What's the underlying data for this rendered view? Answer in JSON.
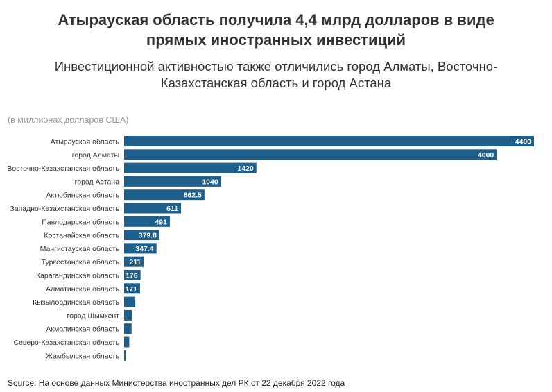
{
  "header": {
    "title_line1": "Атырауская область получила 4,4 млрд долларов в виде",
    "title_line2": "прямых иностранных инвестиций",
    "subtitle_line1": "Инвестиционной активностью также отличились город Алматы, Восточно-",
    "subtitle_line2": "Казахстанская область и город Астана",
    "unit_note": "(в миллионах долларов США)"
  },
  "footer": {
    "source_label": "Source:",
    "source_text": "На основе данных Министерства иностранных дел РК от 22 декабря 2022 года"
  },
  "colors": {
    "bar": "#1f5f8b",
    "label_text": "#ffffff"
  },
  "chart_data": {
    "type": "bar",
    "orientation": "horizontal",
    "title": "Атырауская область получила 4,4 млрд долларов в виде прямых иностранных инвестиций",
    "subtitle": "Инвестиционной активностью также отличились город Алматы, Восточно-Казахстанская область и город Астана",
    "xlabel": "",
    "ylabel": "",
    "unit": "(в миллионах долларов США)",
    "xlim": [
      0,
      4400
    ],
    "grid": false,
    "categories": [
      "Атырауская область",
      "город Алматы",
      "Восточно-Казахстанская область",
      "город Астана",
      "Актюбинская область",
      "Западно-Казахстанская область",
      "Павлодарская область",
      "Костанайская область",
      "Мангистауская область",
      "Туркестанская область",
      "Карагандинская область",
      "Алматинская область",
      "Кызылординская область",
      "город Шымкент",
      "Акмолинская область",
      "Северо-Казахстанская область",
      "Жамбылская область"
    ],
    "values": [
      4400,
      4000,
      1420,
      1040,
      862.5,
      611,
      491,
      379.8,
      347.4,
      211,
      176,
      171,
      120,
      85,
      80,
      55,
      10
    ],
    "data_labels": [
      "4400",
      "4000",
      "1420",
      "1040",
      "862.5",
      "611",
      "491",
      "379.8",
      "347.4",
      "211",
      "176",
      "171",
      "",
      "",
      "",
      "",
      ""
    ]
  }
}
